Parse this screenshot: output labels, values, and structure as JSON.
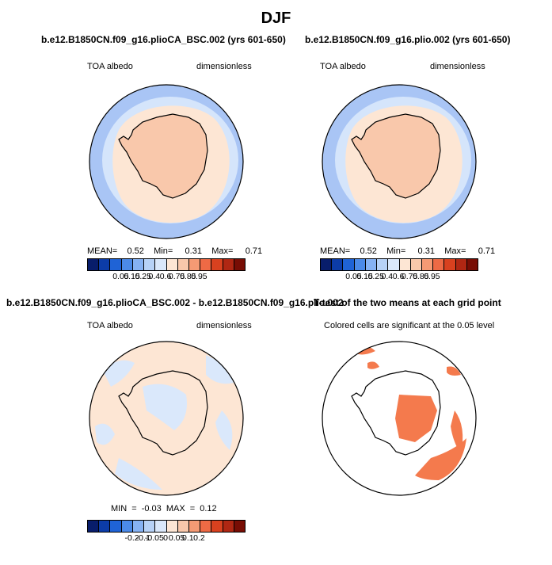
{
  "title": "DJF",
  "panels": [
    {
      "title": "b.e12.B1850CN.f09_g16.plioCA_BSC.002 (yrs 601-650)",
      "left_label": "TOA albedo",
      "right_label": "dimensionless",
      "stats": {
        "mean_label": "MEAN=",
        "mean": "0.52",
        "min_label": "Min=",
        "min": "0.31",
        "max_label": "Max=",
        "max": "0.71"
      }
    },
    {
      "title": "b.e12.B1850CN.f09_g16.plio.002 (yrs 601-650)",
      "left_label": "TOA albedo",
      "right_label": "dimensionless",
      "stats": {
        "mean_label": "MEAN=",
        "mean": "0.52",
        "min_label": "Min=",
        "min": "0.31",
        "max_label": "Max=",
        "max": "0.71"
      }
    },
    {
      "title": "b.e12.B1850CN.f09_g16.plioCA_BSC.002 - b.e12.B1850CN.f09_g16.plio.002",
      "left_label": "TOA albedo",
      "right_label": "dimensionless",
      "stats_text": "MIN = -0.03 MAX = 0.12"
    },
    {
      "title": "T-test of the two means at each grid point",
      "subtitle": "Colored cells are significant at the 0.05 level"
    }
  ],
  "colorbar_abs": {
    "labels": [
      "0.05",
      "0.15",
      "0.25",
      "0.4",
      "0.6",
      "0.75",
      "0.85",
      "0.95"
    ],
    "colors": [
      "#081d6b",
      "#0c3ca8",
      "#1f63d6",
      "#4b8ae8",
      "#86b2f3",
      "#b7d2f7",
      "#dae8fb",
      "#fde6d4",
      "#f9c8ab",
      "#f59a74",
      "#ee6a45",
      "#d9411f",
      "#b02713",
      "#780d04"
    ]
  },
  "colorbar_diff": {
    "labels": [
      "-0.2",
      "-0.1",
      "-0.05",
      "0",
      "0.05",
      "0.1",
      "0.2"
    ],
    "colors": [
      "#081d6b",
      "#0c3ca8",
      "#1f63d6",
      "#4b8ae8",
      "#86b2f3",
      "#b7d2f7",
      "#dae8fb",
      "#fde6d4",
      "#f9c8ab",
      "#f59a74",
      "#ee6a45",
      "#d9411f",
      "#b02713",
      "#780d04"
    ]
  },
  "field_colors": {
    "ocean_outer": "#a9c5f5",
    "ocean_mid": "#d5e5fb",
    "ice_ring": "#fde6d4",
    "continent": "#f9c8ab",
    "diff_base": "#fde6d4",
    "diff_blue": "#dae8fb",
    "sig": "#f47a4d"
  }
}
